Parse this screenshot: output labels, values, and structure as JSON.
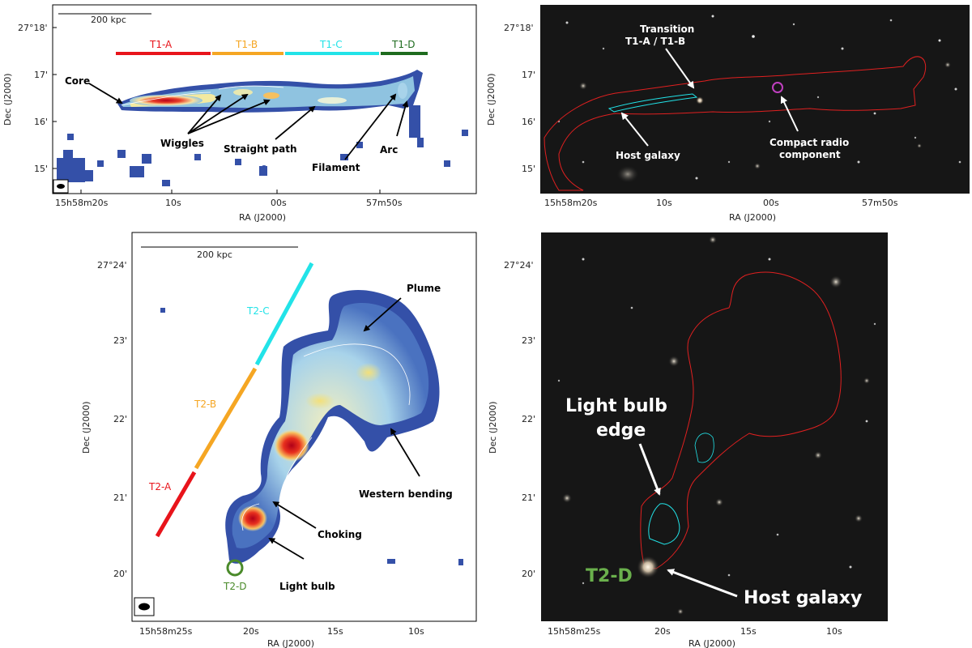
{
  "common": {
    "scale_bar": "200 kpc",
    "dec_label": "Dec (J2000)",
    "ra_label": "RA (J2000)"
  },
  "p1": {
    "dec_ticks": [
      "27°18'",
      "17'",
      "16'",
      "15'"
    ],
    "ra_ticks": [
      "15h58m20s",
      "10s",
      "00s",
      "57m50s"
    ],
    "segments": [
      {
        "label": "T1-A",
        "color": "#e8141b"
      },
      {
        "label": "T1-B",
        "color": "#f5a623"
      },
      {
        "label": "T1-C",
        "color": "#22e3e8"
      },
      {
        "label": "T1-D",
        "color": "#1e6b1e"
      }
    ],
    "labels": {
      "core": "Core",
      "wiggles": "Wiggles",
      "straight": "Straight path",
      "filament": "Filament",
      "arc": "Arc"
    }
  },
  "p2": {
    "dec_ticks": [
      "27°18'",
      "17'",
      "16'",
      "15'"
    ],
    "ra_ticks": [
      "15h58m20s",
      "10s",
      "00s",
      "57m50s"
    ],
    "labels": {
      "transition_1": "Transition",
      "transition_2": "T1-A / T1-B",
      "host": "Host galaxy",
      "compact_1": "Compact radio",
      "compact_2": "component"
    }
  },
  "p3": {
    "dec_ticks": [
      "27°24'",
      "23'",
      "22'",
      "21'",
      "20'"
    ],
    "ra_ticks": [
      "15h58m25s",
      "20s",
      "15s",
      "10s"
    ],
    "segments": [
      {
        "label": "T2-C",
        "color": "#22e3e8"
      },
      {
        "label": "T2-B",
        "color": "#f5a623"
      },
      {
        "label": "T2-A",
        "color": "#e8141b"
      },
      {
        "label": "T2-D",
        "color": "#4a8a2a"
      }
    ],
    "labels": {
      "plume": "Plume",
      "western": "Western bending",
      "choking": "Choking",
      "bulb": "Light bulb"
    }
  },
  "p4": {
    "dec_ticks": [
      "27°24'",
      "23'",
      "22'",
      "21'",
      "20'"
    ],
    "ra_ticks": [
      "15h58m25s",
      "20s",
      "15s",
      "10s"
    ],
    "labels": {
      "edge_1": "Light bulb",
      "edge_2": "edge",
      "t2d": "T2-D",
      "host": "Host galaxy"
    }
  }
}
